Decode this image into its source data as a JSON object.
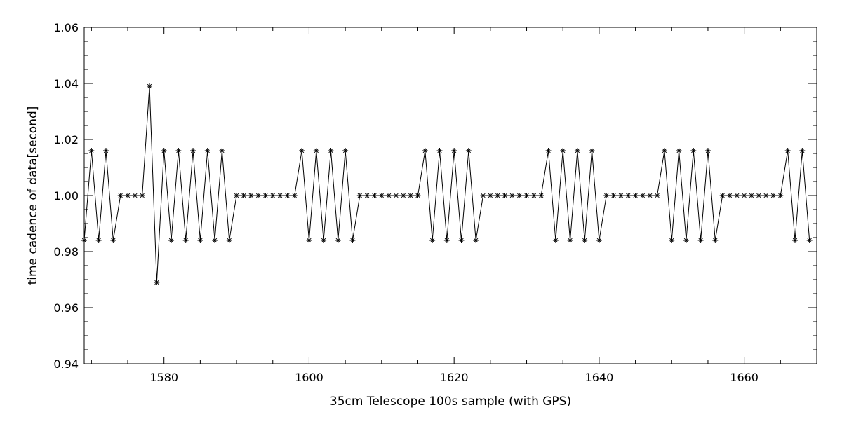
{
  "chart_data": {
    "type": "line",
    "xlabel": "35cm Telescope 100s sample (with GPS)",
    "ylabel": "time cadence of data[second]",
    "xlim": [
      1569,
      1670
    ],
    "ylim": [
      0.94,
      1.06
    ],
    "x_ticks": [
      1580,
      1600,
      1620,
      1640,
      1660
    ],
    "x_tick_labels": [
      "1580",
      "1600",
      "1620",
      "1640",
      "1660"
    ],
    "y_ticks": [
      0.94,
      0.96,
      0.98,
      1.0,
      1.02,
      1.04,
      1.06
    ],
    "y_tick_labels": [
      "0.94",
      "0.96",
      "0.98",
      "1.00",
      "1.02",
      "1.04",
      "1.06"
    ],
    "grid": false,
    "marker": "asterisk",
    "line_color": "#000000",
    "series": [
      {
        "x": [
          1569,
          1570,
          1571,
          1572,
          1573,
          1574,
          1575,
          1576,
          1577,
          1578,
          1579,
          1580,
          1581,
          1582,
          1583,
          1584,
          1585,
          1586,
          1587,
          1588,
          1589,
          1590,
          1591,
          1592,
          1593,
          1594,
          1595,
          1596,
          1597,
          1598,
          1599,
          1600,
          1601,
          1602,
          1603,
          1604,
          1605,
          1606,
          1607,
          1608,
          1609,
          1610,
          1611,
          1612,
          1613,
          1614,
          1615,
          1616,
          1617,
          1618,
          1619,
          1620,
          1621,
          1622,
          1623,
          1624,
          1625,
          1626,
          1627,
          1628,
          1629,
          1630,
          1631,
          1632,
          1633,
          1634,
          1635,
          1636,
          1637,
          1638,
          1639,
          1640,
          1641,
          1642,
          1643,
          1644,
          1645,
          1646,
          1647,
          1648,
          1649,
          1650,
          1651,
          1652,
          1653,
          1654,
          1655,
          1656,
          1657,
          1658,
          1659,
          1660,
          1661,
          1662,
          1663,
          1664,
          1665,
          1666,
          1667,
          1668,
          1669
        ],
        "y": [
          0.984,
          1.016,
          0.984,
          1.016,
          0.984,
          1.0,
          1.0,
          1.0,
          1.0,
          1.039,
          0.969,
          1.016,
          0.984,
          1.016,
          0.984,
          1.016,
          0.984,
          1.016,
          0.984,
          1.016,
          0.984,
          1.0,
          1.0,
          1.0,
          1.0,
          1.0,
          1.0,
          1.0,
          1.0,
          1.0,
          1.016,
          0.984,
          1.016,
          0.984,
          1.016,
          0.984,
          1.016,
          0.984,
          1.0,
          1.0,
          1.0,
          1.0,
          1.0,
          1.0,
          1.0,
          1.0,
          1.0,
          1.016,
          0.984,
          1.016,
          0.984,
          1.016,
          0.984,
          1.016,
          0.984,
          1.0,
          1.0,
          1.0,
          1.0,
          1.0,
          1.0,
          1.0,
          1.0,
          1.0,
          1.016,
          0.984,
          1.016,
          0.984,
          1.016,
          0.984,
          1.016,
          0.984,
          1.0,
          1.0,
          1.0,
          1.0,
          1.0,
          1.0,
          1.0,
          1.0,
          1.016,
          0.984,
          1.016,
          0.984,
          1.016,
          0.984,
          1.016,
          0.984,
          1.0,
          1.0,
          1.0,
          1.0,
          1.0,
          1.0,
          1.0,
          1.0,
          1.0,
          1.016,
          0.984,
          1.016,
          0.984
        ]
      }
    ]
  }
}
